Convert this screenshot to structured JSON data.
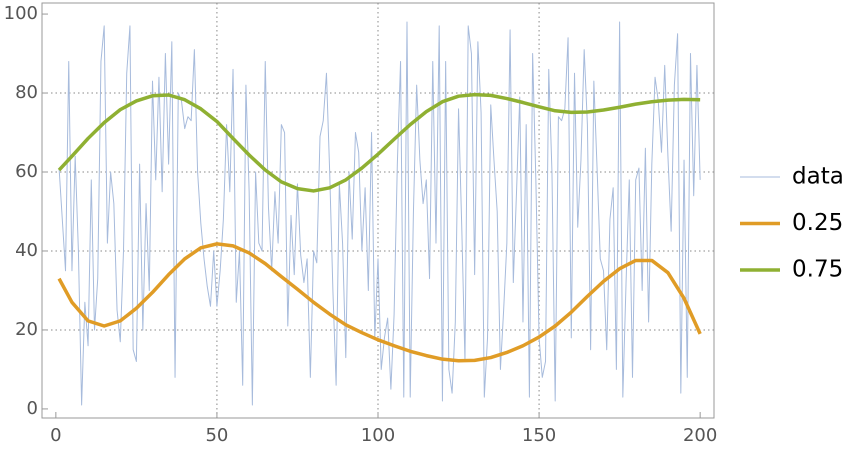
{
  "chart_data": {
    "type": "line",
    "xlim": [
      -4.3,
      204.3
    ],
    "ylim": [
      -2.3,
      102.8
    ],
    "xticks": [
      0,
      50,
      100,
      150,
      200
    ],
    "yticks": [
      0,
      20,
      40,
      60,
      80,
      100
    ],
    "grid_x": [
      50,
      100,
      150
    ],
    "grid_y": [
      20,
      40,
      60,
      80
    ],
    "grid": true,
    "legend": "right",
    "series": [
      {
        "name": "data",
        "color": "#a7bbdc",
        "width": 1,
        "x": [
          1,
          2,
          3,
          4,
          5,
          6,
          7,
          8,
          9,
          10,
          11,
          12,
          13,
          14,
          15,
          16,
          17,
          18,
          19,
          20,
          21,
          22,
          23,
          24,
          25,
          26,
          27,
          28,
          29,
          30,
          31,
          32,
          33,
          34,
          35,
          36,
          37,
          38,
          39,
          40,
          41,
          42,
          43,
          44,
          45,
          46,
          47,
          48,
          49,
          50,
          51,
          52,
          53,
          54,
          55,
          56,
          57,
          58,
          59,
          60,
          61,
          62,
          63,
          64,
          65,
          66,
          67,
          68,
          69,
          70,
          71,
          72,
          73,
          74,
          75,
          76,
          77,
          78,
          79,
          80,
          81,
          82,
          83,
          84,
          85,
          86,
          87,
          88,
          89,
          90,
          91,
          92,
          93,
          94,
          95,
          96,
          97,
          98,
          99,
          100,
          101,
          102,
          103,
          104,
          105,
          106,
          107,
          108,
          109,
          110,
          111,
          112,
          113,
          114,
          115,
          116,
          117,
          118,
          119,
          120,
          121,
          122,
          123,
          124,
          125,
          126,
          127,
          128,
          129,
          130,
          131,
          132,
          133,
          134,
          135,
          136,
          137,
          138,
          139,
          140,
          141,
          142,
          143,
          144,
          145,
          146,
          147,
          148,
          149,
          150,
          151,
          152,
          153,
          154,
          155,
          156,
          157,
          158,
          159,
          160,
          161,
          162,
          163,
          164,
          165,
          166,
          167,
          168,
          169,
          170,
          171,
          172,
          173,
          174,
          175,
          176,
          177,
          178,
          179,
          180,
          181,
          182,
          183,
          184,
          185,
          186,
          187,
          188,
          189,
          190,
          191,
          192,
          193,
          194,
          195,
          196,
          197,
          198,
          199,
          200
        ],
        "values": [
          61,
          48,
          35,
          88,
          35,
          64,
          40,
          1,
          27,
          16,
          58,
          20,
          33,
          88,
          97,
          42,
          60,
          52,
          25,
          17,
          40,
          85,
          97,
          15,
          12,
          62,
          20,
          52,
          30,
          83,
          58,
          84,
          55,
          90,
          62,
          93,
          8,
          80,
          78,
          71,
          74,
          73,
          91,
          60,
          47,
          38,
          31,
          26,
          40,
          26,
          35,
          48,
          72,
          55,
          86,
          27,
          40,
          6,
          82,
          55,
          1,
          60,
          42,
          40,
          88,
          51,
          35,
          55,
          42,
          72,
          70,
          21,
          49,
          34,
          57,
          39,
          32,
          38,
          8,
          40,
          37,
          69,
          73,
          85,
          60,
          30,
          6,
          57,
          42,
          13,
          60,
          43,
          70,
          65,
          40,
          56,
          30,
          70,
          18,
          38,
          10,
          18,
          23,
          5,
          24,
          62,
          88,
          3,
          98,
          3,
          50,
          82,
          63,
          52,
          58,
          33,
          88,
          42,
          97,
          2,
          88,
          10,
          4,
          22,
          76,
          46,
          12,
          97,
          90,
          34,
          93,
          75,
          3,
          18,
          77,
          63,
          50,
          10,
          25,
          42,
          96,
          32,
          55,
          79,
          22,
          72,
          3,
          90,
          58,
          18,
          8,
          12,
          86,
          60,
          2,
          74,
          73,
          76,
          94,
          18,
          85,
          46,
          63,
          91,
          72,
          15,
          83,
          61,
          38,
          35,
          15,
          48,
          56,
          10,
          98,
          3,
          32,
          58,
          8,
          58,
          61,
          30,
          66,
          22,
          62,
          84,
          78,
          65,
          87,
          64,
          45,
          82,
          95,
          4,
          63,
          8,
          90,
          54,
          87,
          58
        ]
      },
      {
        "name": "0.25",
        "color": "#e09c26",
        "width": 3.5,
        "x": [
          1,
          5,
          10,
          15,
          20,
          25,
          30,
          35,
          40,
          45,
          50,
          55,
          60,
          65,
          70,
          75,
          80,
          85,
          90,
          95,
          100,
          105,
          110,
          115,
          120,
          125,
          130,
          135,
          140,
          145,
          150,
          155,
          160,
          165,
          170,
          175,
          180,
          185,
          190,
          195,
          200
        ],
        "values": [
          33,
          27,
          22.3,
          21,
          22.3,
          25.5,
          29.5,
          34,
          38,
          40.8,
          41.8,
          41.3,
          39.5,
          36.8,
          33.5,
          30.3,
          27,
          24,
          21.3,
          19.3,
          17.5,
          16,
          14.6,
          13.5,
          12.6,
          12.2,
          12.3,
          13,
          14.3,
          16,
          18.2,
          21,
          24.5,
          28.5,
          32.3,
          35.5,
          37.6,
          37.6,
          34.5,
          28,
          19
        ]
      },
      {
        "name": "0.75",
        "color": "#8fb032",
        "width": 3.5,
        "x": [
          1,
          5,
          10,
          15,
          20,
          25,
          30,
          35,
          40,
          45,
          50,
          55,
          60,
          65,
          70,
          75,
          80,
          85,
          90,
          95,
          100,
          105,
          110,
          115,
          120,
          125,
          130,
          135,
          140,
          145,
          150,
          155,
          160,
          165,
          170,
          175,
          180,
          185,
          190,
          195,
          200
        ],
        "values": [
          60.5,
          64,
          68.5,
          72.5,
          75.8,
          78,
          79.3,
          79.5,
          78.3,
          76,
          72.8,
          68.5,
          64.3,
          60.5,
          57.5,
          55.8,
          55.2,
          56,
          58,
          61,
          64.5,
          68.3,
          72,
          75.3,
          77.8,
          79.2,
          79.6,
          79.4,
          78.6,
          77.6,
          76.5,
          75.5,
          75.1,
          75.2,
          75.7,
          76.4,
          77.2,
          77.8,
          78.2,
          78.4,
          78.3
        ]
      }
    ]
  }
}
